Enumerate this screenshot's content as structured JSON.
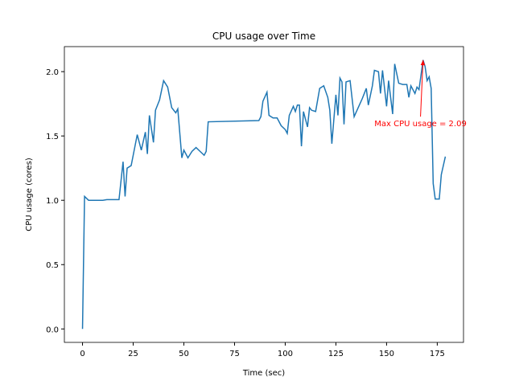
{
  "chart_data": {
    "type": "line",
    "title": "CPU usage over Time",
    "x_label": "Time (sec)",
    "y_label": "CPU usage (cores)",
    "x": [
      0,
      1,
      3,
      5,
      8,
      10,
      12,
      15,
      18,
      20,
      21,
      22,
      24,
      26,
      27,
      29,
      31,
      32,
      33,
      35,
      36,
      38,
      40,
      42,
      44,
      46,
      47,
      49,
      50,
      52,
      54,
      56,
      58,
      60,
      61,
      62,
      87,
      88,
      89,
      91,
      92,
      94,
      96,
      98,
      100,
      101,
      102,
      104,
      105,
      106,
      107,
      108,
      109,
      111,
      112,
      113,
      115,
      117,
      119,
      121,
      122,
      123,
      124,
      125,
      126,
      127,
      128,
      129,
      130,
      132,
      134,
      136,
      138,
      140,
      141,
      143,
      144,
      146,
      147,
      148,
      150,
      151,
      153,
      154,
      156,
      158,
      160,
      161,
      162,
      164,
      165,
      166,
      168,
      169,
      170,
      171,
      172,
      173,
      174,
      176,
      177,
      179
    ],
    "series": [
      {
        "name": "CPU usage",
        "color": "#1f77b4",
        "values": [
          0.0,
          1.03,
          1.0,
          1.0,
          1.0,
          1.0,
          1.005,
          1.005,
          1.005,
          1.3,
          1.03,
          1.25,
          1.27,
          1.43,
          1.51,
          1.39,
          1.53,
          1.36,
          1.66,
          1.45,
          1.7,
          1.78,
          1.93,
          1.88,
          1.72,
          1.68,
          1.71,
          1.33,
          1.39,
          1.33,
          1.38,
          1.41,
          1.38,
          1.35,
          1.38,
          1.61,
          1.62,
          1.65,
          1.77,
          1.84,
          1.66,
          1.64,
          1.64,
          1.58,
          1.55,
          1.52,
          1.66,
          1.73,
          1.69,
          1.74,
          1.74,
          1.42,
          1.69,
          1.57,
          1.72,
          1.7,
          1.69,
          1.87,
          1.89,
          1.8,
          1.7,
          1.44,
          1.63,
          1.82,
          1.66,
          1.95,
          1.92,
          1.59,
          1.92,
          1.93,
          1.65,
          1.72,
          1.79,
          1.87,
          1.74,
          1.89,
          2.01,
          2.0,
          1.83,
          2.01,
          1.73,
          1.93,
          1.67,
          2.06,
          1.91,
          1.9,
          1.9,
          1.8,
          1.89,
          1.83,
          1.88,
          1.86,
          2.09,
          2.04,
          1.93,
          1.96,
          1.87,
          1.13,
          1.01,
          1.01,
          1.2,
          1.34
        ]
      }
    ],
    "xlim": [
      -8.95,
      187.95
    ],
    "xticks": [
      0,
      25,
      50,
      75,
      100,
      125,
      150,
      175
    ],
    "ylim": [
      -0.1045,
      2.1945
    ],
    "yticks": [
      {
        "value": 0,
        "label": "0.0"
      },
      {
        "value": 0.5,
        "label": "0.5"
      },
      {
        "value": 1,
        "label": "1.0"
      },
      {
        "value": 1.5,
        "label": "1.5"
      },
      {
        "value": 2,
        "label": "2.0"
      }
    ],
    "annotation": {
      "text": "Max CPU usage = 2.09",
      "x": 168,
      "y": 2.09,
      "text_x": 144,
      "text_y": 1.6,
      "color": "red"
    }
  }
}
